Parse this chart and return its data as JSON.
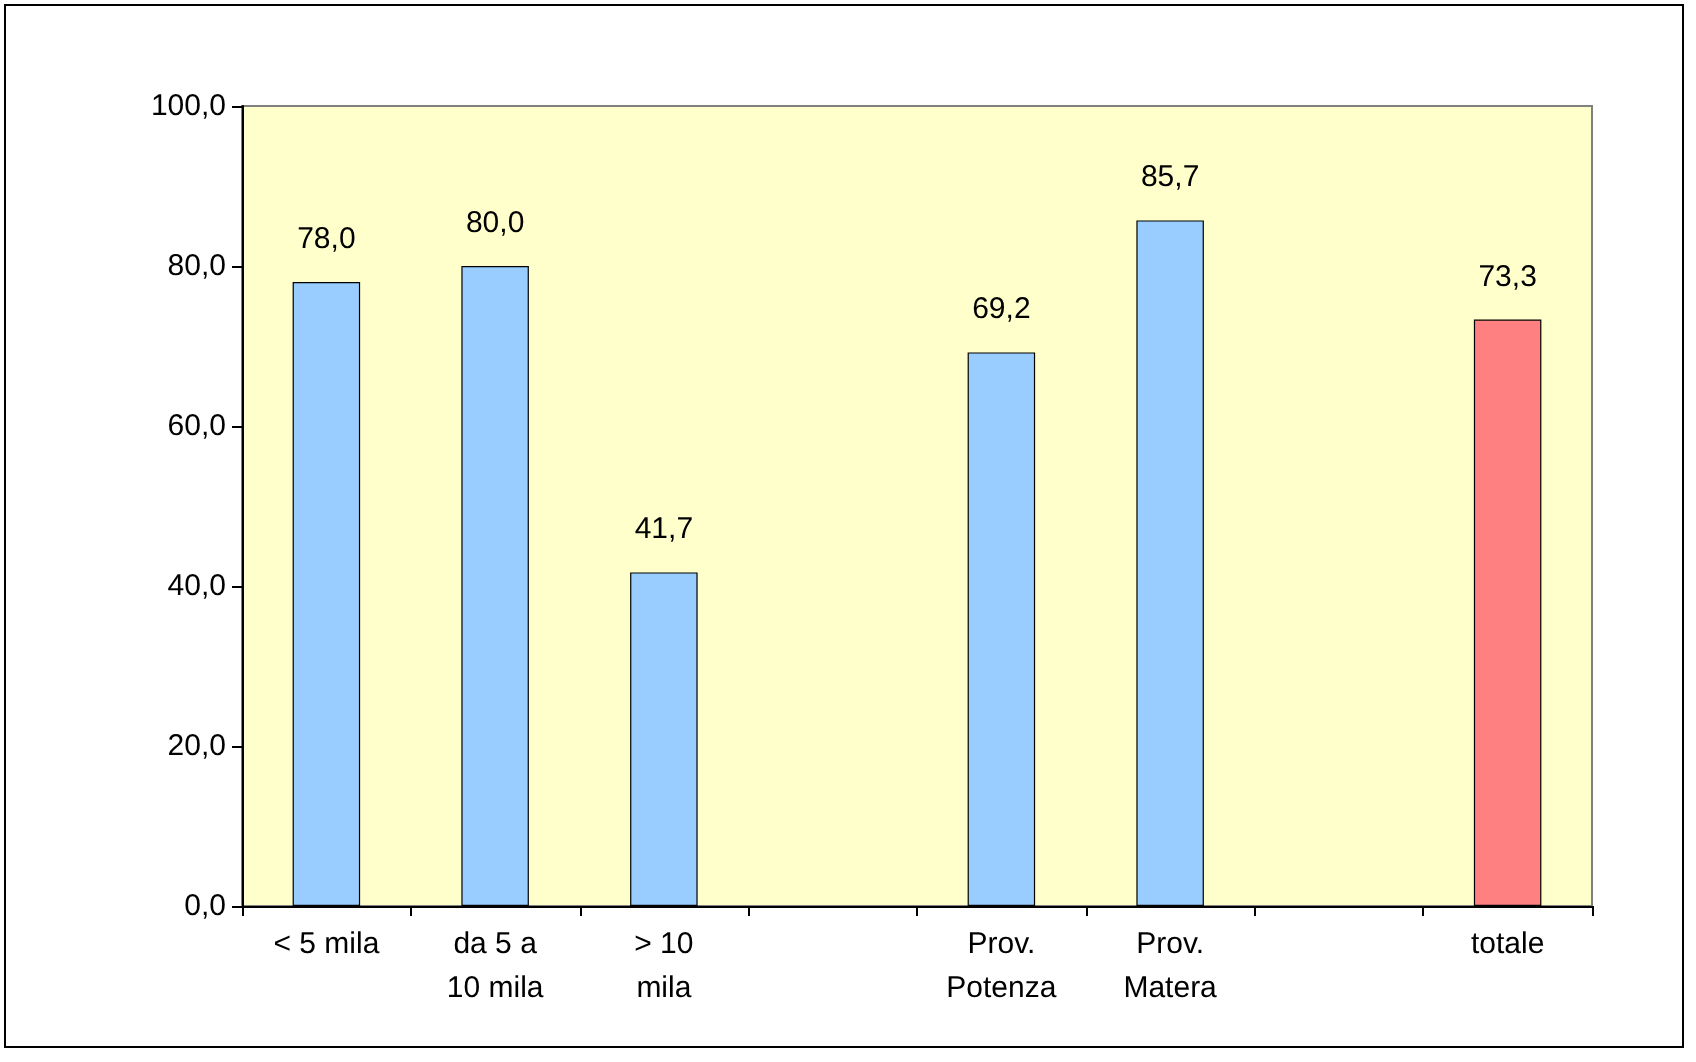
{
  "chart_data": {
    "type": "bar",
    "categories": [
      "< 5 mila",
      "da 5 a\n10 mila",
      "> 10\nmila",
      null,
      "Prov.\nPotenza",
      "Prov.\nMatera",
      null,
      "totale"
    ],
    "values": [
      78.0,
      80.0,
      41.7,
      null,
      69.2,
      85.7,
      null,
      73.3
    ],
    "colors": [
      "#99ccff",
      "#99ccff",
      "#99ccff",
      "#99ccff",
      "#99ccff",
      "#99ccff",
      "#99ccff",
      "#ff8080"
    ],
    "value_labels": [
      "78,0",
      "80,0",
      "41,7",
      null,
      "69,2",
      "85,7",
      null,
      "73,3"
    ],
    "ylim": [
      0,
      100
    ],
    "yticks": [
      {
        "value": 0,
        "label": "0,0"
      },
      {
        "value": 20,
        "label": "20,0"
      },
      {
        "value": 40,
        "label": "40,0"
      },
      {
        "value": 60,
        "label": "60,0"
      },
      {
        "value": 80,
        "label": "80,0"
      },
      {
        "value": 100,
        "label": "100,0"
      }
    ],
    "grid": false
  }
}
